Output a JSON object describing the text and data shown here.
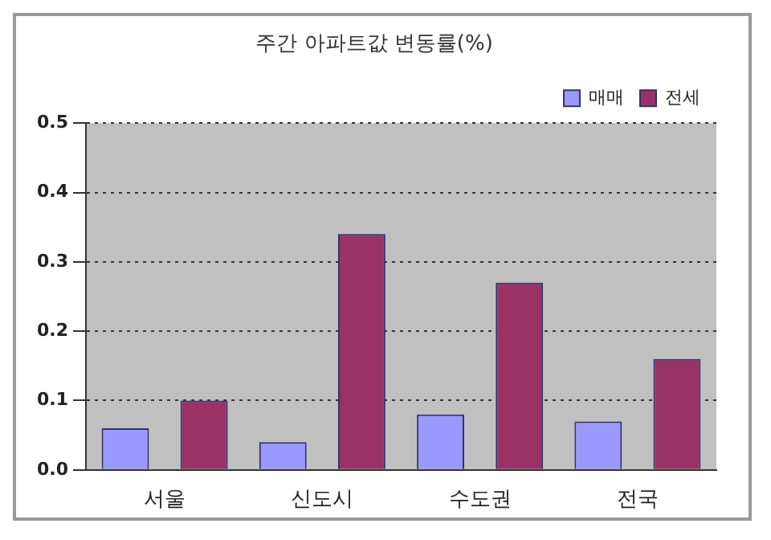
{
  "chart_data": {
    "type": "bar",
    "title": "주간 아파트값 변동률(%)",
    "categories": [
      "서울",
      "신도시",
      "수도권",
      "전국"
    ],
    "series": [
      {
        "name": "매매",
        "color": "#9999ff",
        "values": [
          0.06,
          0.04,
          0.08,
          0.07
        ]
      },
      {
        "name": "전세",
        "color": "#993366",
        "values": [
          0.1,
          0.34,
          0.27,
          0.16
        ]
      }
    ],
    "ylim": [
      0,
      0.5
    ],
    "yticks": [
      {
        "value": 0,
        "label": "0.0"
      },
      {
        "value": 0.1,
        "label": "0.1"
      },
      {
        "value": 0.2,
        "label": "0.2"
      },
      {
        "value": 0.3,
        "label": "0.3"
      },
      {
        "value": 0.4,
        "label": "0.4"
      },
      {
        "value": 0.5,
        "label": "0.5"
      }
    ],
    "grid": "y",
    "legend": "top right"
  }
}
